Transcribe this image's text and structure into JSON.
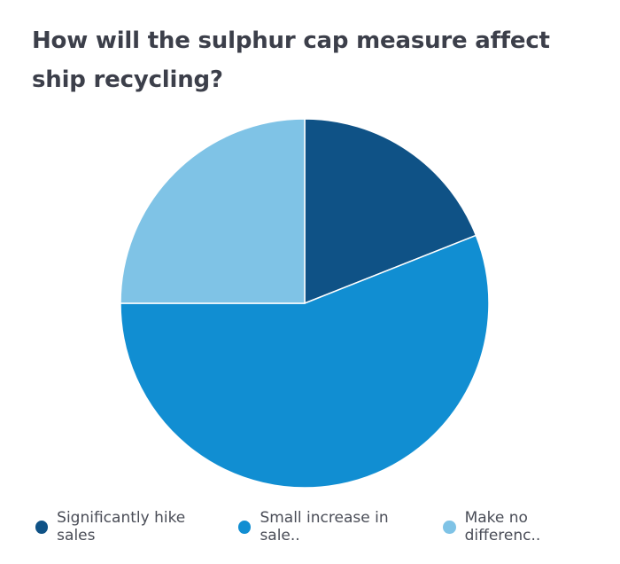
{
  "chart_data": {
    "type": "pie",
    "title": "How will the sulphur cap measure affect ship recycling?",
    "series": [
      {
        "name": "Significantly hike sales",
        "label": "Significantly hike sales",
        "value": 19,
        "color": "#0f5286"
      },
      {
        "name": "Small increase in sales",
        "label": "Small increase in sale..",
        "value": 56,
        "color": "#118ed2"
      },
      {
        "name": "Make no difference",
        "label": "Make no differenc..",
        "value": 25,
        "color": "#7fc3e6"
      }
    ],
    "legend_position": "bottom-left"
  }
}
